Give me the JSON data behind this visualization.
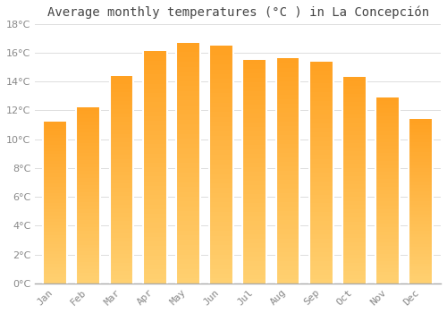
{
  "title": "Average monthly temperatures (°C ) in La Concepción",
  "months": [
    "Jan",
    "Feb",
    "Mar",
    "Apr",
    "May",
    "Jun",
    "Jul",
    "Aug",
    "Sep",
    "Oct",
    "Nov",
    "Dec"
  ],
  "values": [
    11.2,
    12.2,
    14.4,
    16.1,
    16.7,
    16.5,
    15.5,
    15.6,
    15.4,
    14.3,
    12.9,
    11.4
  ],
  "bar_color": "#FFA020",
  "bar_edge_color": "#FFD080",
  "ylim": [
    0,
    18
  ],
  "ytick_step": 2,
  "background_color": "#FFFFFF",
  "plot_bg_color": "#FFFFFF",
  "grid_color": "#DDDDDD",
  "title_fontsize": 10,
  "tick_fontsize": 8,
  "tick_label_color": "#888888",
  "title_color": "#444444",
  "axis_color": "#AAAAAA"
}
